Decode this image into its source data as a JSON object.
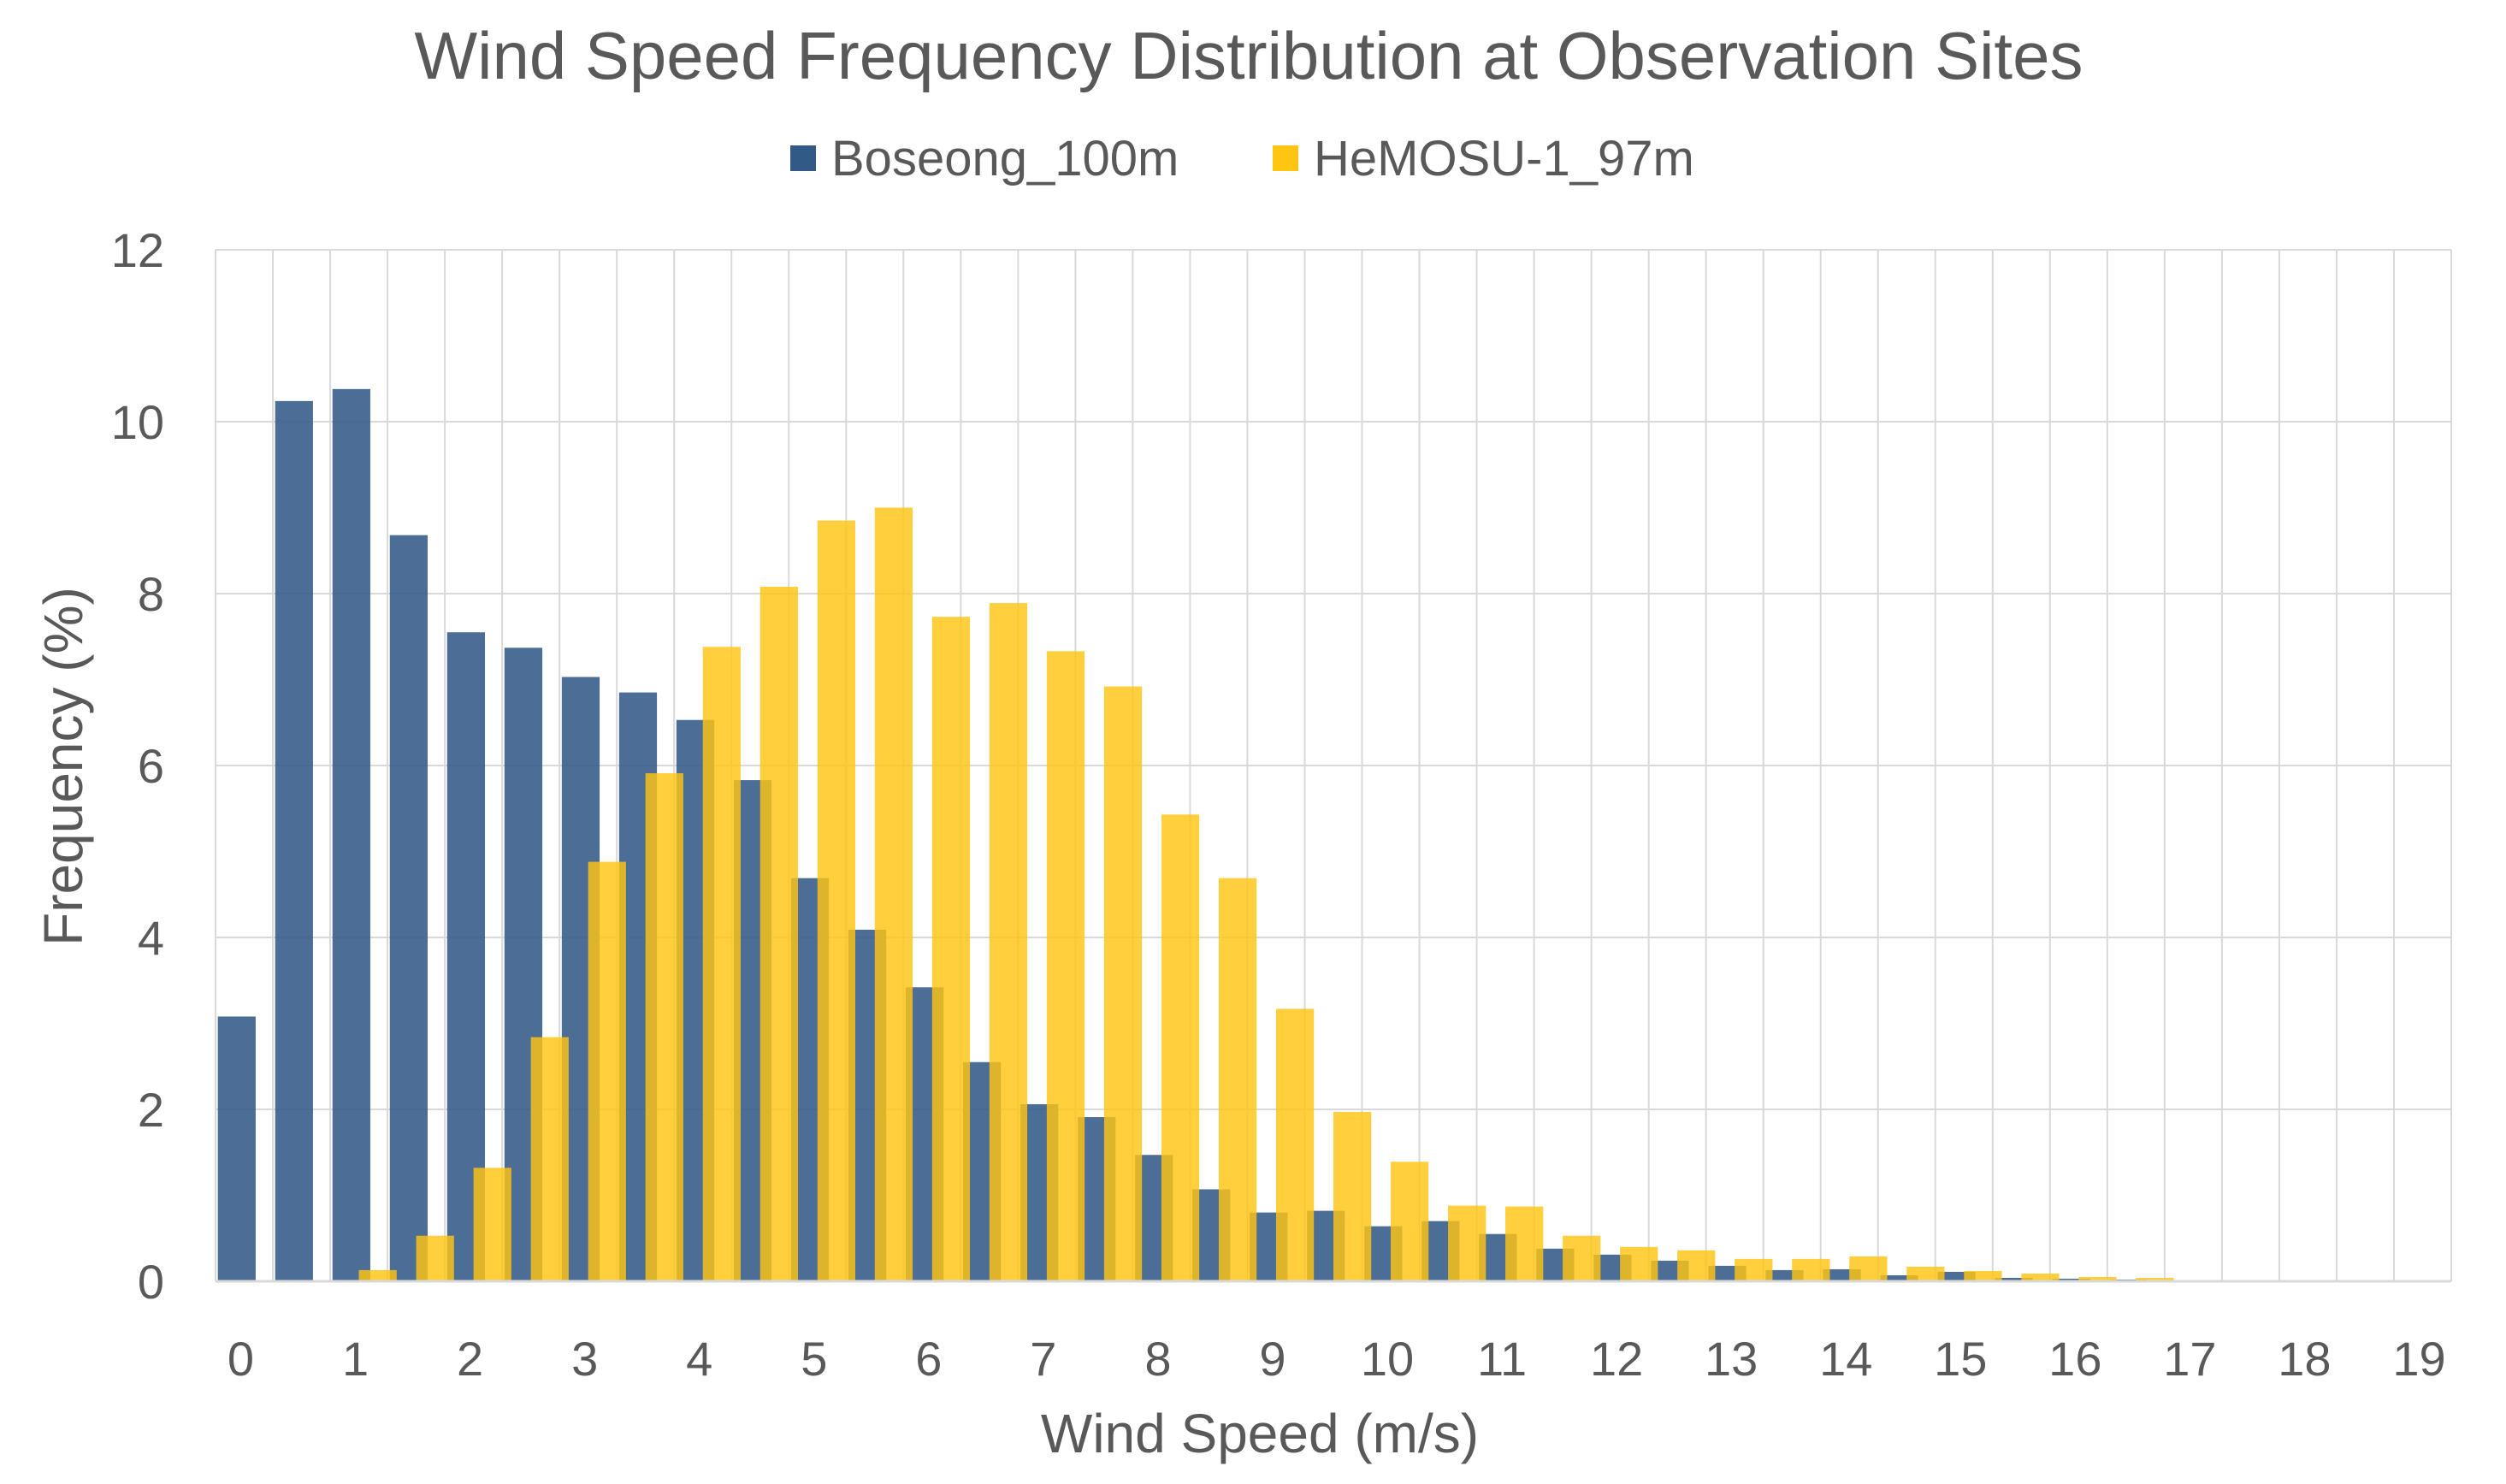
{
  "chart_data": {
    "type": "bar",
    "title": "Wind Speed Frequency Distribution at Observation Sites",
    "xlabel": "Wind Speed (m/s)",
    "ylabel": "Frequency (%)",
    "ylim": [
      0,
      12
    ],
    "yticks": [
      "0",
      "2",
      "4",
      "6",
      "8",
      "10",
      "12"
    ],
    "xlim": [
      0,
      19.5
    ],
    "xticks": [
      "0",
      "1",
      "2",
      "3",
      "4",
      "5",
      "6",
      "7",
      "8",
      "9",
      "10",
      "11",
      "12",
      "13",
      "14",
      "15",
      "16",
      "17",
      "18",
      "19"
    ],
    "bin_starts": [
      0,
      0.5,
      1,
      1.5,
      2,
      2.5,
      3,
      3.5,
      4,
      4.5,
      5,
      5.5,
      6,
      6.5,
      7,
      7.5,
      8,
      8.5,
      9,
      9.5,
      10,
      10.5,
      11,
      11.5,
      12,
      12.5,
      13,
      13.5,
      14,
      14.5,
      15,
      15.5,
      16,
      16.5,
      17,
      17.5,
      18,
      18.5,
      19
    ],
    "grid": true,
    "legend_position": "top-center",
    "series": [
      {
        "name": "Boseong_100m",
        "color": "#335a87",
        "opacity": 0.88,
        "values": [
          3.08,
          10.24,
          10.38,
          8.68,
          7.55,
          7.37,
          7.03,
          6.85,
          6.53,
          5.83,
          4.69,
          4.09,
          3.42,
          2.55,
          2.06,
          1.91,
          1.47,
          1.07,
          0.8,
          0.82,
          0.64,
          0.7,
          0.55,
          0.38,
          0.31,
          0.24,
          0.18,
          0.13,
          0.14,
          0.07,
          0.11,
          0.04,
          0.03,
          0.02,
          0.01,
          0.01,
          0.0,
          0.0,
          0.0
        ]
      },
      {
        "name": "HeMOSU-1_97m",
        "color": "#ffc512",
        "opacity": 0.82,
        "values": [
          0.0,
          0.0,
          0.13,
          0.53,
          1.32,
          2.84,
          4.88,
          5.91,
          7.38,
          8.08,
          8.85,
          9.0,
          7.73,
          7.89,
          7.33,
          6.92,
          5.43,
          4.69,
          3.17,
          1.97,
          1.39,
          0.88,
          0.87,
          0.53,
          0.4,
          0.36,
          0.26,
          0.26,
          0.29,
          0.17,
          0.12,
          0.09,
          0.05,
          0.04,
          0.01,
          0.01,
          0.0,
          0.0,
          0.0
        ]
      }
    ]
  }
}
